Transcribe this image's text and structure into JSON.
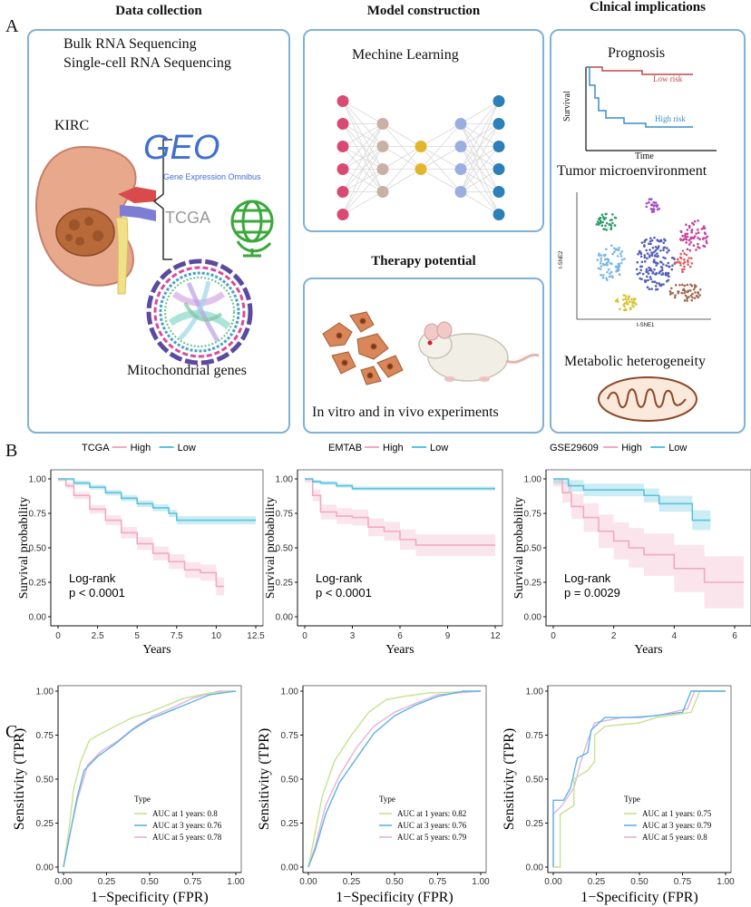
{
  "panel_labels": {
    "a": "A",
    "b": "B",
    "c": "C"
  },
  "section_a": {
    "data_collection": {
      "title": "Data collection",
      "line1": "Bulk RNA Sequencing",
      "line2": "Single-cell RNA Sequencing",
      "kirc": "KIRC",
      "geo": "GEO",
      "geo_sub": "Gene Expression Omnibus",
      "tcga": "TCGA",
      "mito": "Mitochondrial genes"
    },
    "model": {
      "title": "Model construction",
      "ml": "Mechine Learning"
    },
    "therapy": {
      "title": "Therapy potential",
      "caption": "In vitro and in vivo experiments"
    },
    "clinical": {
      "title": "Clnical implications",
      "prognosis": "Prognosis",
      "low_risk": "Low risk",
      "high_risk": "High risk",
      "survival": "Survival",
      "time": "Time",
      "tme": "Tumor microenvironment",
      "tsne2": "t-SNE2",
      "tsne1": "t-SNE1",
      "metabolic": "Metabolic heterogeneity"
    }
  },
  "colors": {
    "high": "#f2a9bf",
    "low": "#5bc2dc",
    "auc1": "#c6e28f",
    "auc3": "#5eb3e6",
    "auc5": "#e2b3dc",
    "border": "#7fb2d8"
  },
  "km": [
    {
      "legend_title": "TCGA",
      "high": "High",
      "low": "Low",
      "ylabel": "Survival probability",
      "xlabel": "Years",
      "logrank": "Log-rank",
      "p": "p < 0.0001",
      "xticks": [
        "0",
        "2.5",
        "5",
        "7.5",
        "10",
        "12.5"
      ],
      "yticks": [
        "0.00",
        "0.25",
        "0.50",
        "0.75",
        "1.00"
      ]
    },
    {
      "legend_title": "EMTAB",
      "high": "High",
      "low": "Low",
      "ylabel": "Survival probability",
      "xlabel": "Years",
      "logrank": "Log-rank",
      "p": "p < 0.0001",
      "xticks": [
        "0",
        "3",
        "6",
        "9",
        "12"
      ],
      "yticks": [
        "0.00",
        "0.25",
        "0.50",
        "0.75",
        "1.00"
      ]
    },
    {
      "legend_title": "GSE29609",
      "high": "High",
      "low": "Low",
      "ylabel": "Survival probability",
      "xlabel": "Years",
      "logrank": "Log-rank",
      "p": "p = 0.0029",
      "xticks": [
        "0",
        "2",
        "4",
        "6"
      ],
      "yticks": [
        "0.00",
        "0.25",
        "0.50",
        "0.75",
        "1.00"
      ]
    }
  ],
  "roc": [
    {
      "ylabel": "Sensitivity (TPR)",
      "xlabel": "1−Specificity (FPR)",
      "type": "Type",
      "auc1": "AUC at 1 years: 0.8",
      "auc3": "AUC at 3 years: 0.76",
      "auc5": "AUC at 5 years: 0.78",
      "ticks": [
        "0.00",
        "0.25",
        "0.50",
        "0.75",
        "1.00"
      ]
    },
    {
      "ylabel": "Sensitivity (TPR)",
      "xlabel": "1−Specificity (FPR)",
      "type": "Type",
      "auc1": "AUC at 1 years: 0.82",
      "auc3": "AUC at 3 years: 0.76",
      "auc5": "AUC at 5 years: 0.79",
      "ticks": [
        "0.00",
        "0.25",
        "0.50",
        "0.75",
        "1.00"
      ]
    },
    {
      "ylabel": "Sensitivity (TPR)",
      "xlabel": "1−Specificity (FPR)",
      "type": "Type",
      "auc1": "AUC at 1 years: 0.75",
      "auc3": "AUC at 3 years: 0.79",
      "auc5": "AUC at 5 years: 0.8",
      "ticks": [
        "0.00",
        "0.25",
        "0.50",
        "0.75",
        "1.00"
      ]
    }
  ]
}
